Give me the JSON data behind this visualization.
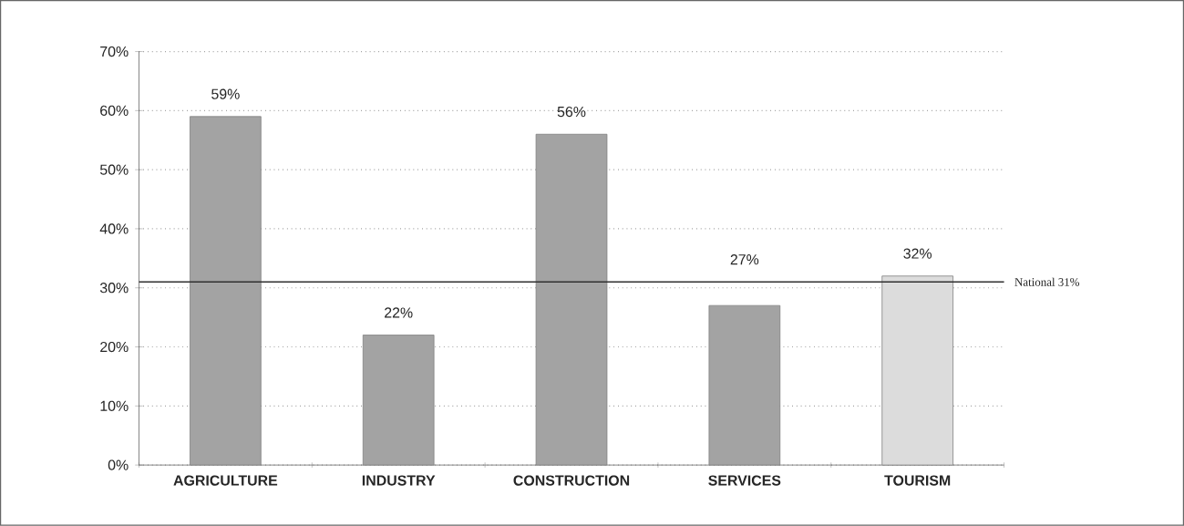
{
  "chart_data": {
    "type": "bar",
    "categories": [
      "AGRICULTURE",
      "INDUSTRY",
      "CONSTRUCTION",
      "SERVICES",
      "TOURISM"
    ],
    "values": [
      59,
      22,
      56,
      27,
      32
    ],
    "colors": [
      "#a3a3a3",
      "#a3a3a3",
      "#a3a3a3",
      "#a3a3a3",
      "#dcdcdc"
    ],
    "value_labels": [
      "59%",
      "22%",
      "56%",
      "27%",
      "32%"
    ],
    "ylim": [
      0,
      70
    ],
    "yticks": [
      {
        "value": 0,
        "label": "0%"
      },
      {
        "value": 10,
        "label": "10%"
      },
      {
        "value": 20,
        "label": "20%"
      },
      {
        "value": 30,
        "label": "30%"
      },
      {
        "value": 40,
        "label": "40%"
      },
      {
        "value": 50,
        "label": "50%"
      },
      {
        "value": 60,
        "label": "60%"
      },
      {
        "value": 70,
        "label": "70%"
      }
    ],
    "grid": "y",
    "ref_lines": [
      {
        "axis": "y",
        "value": 31,
        "label": "National 31%",
        "color": "#303030"
      }
    ]
  }
}
